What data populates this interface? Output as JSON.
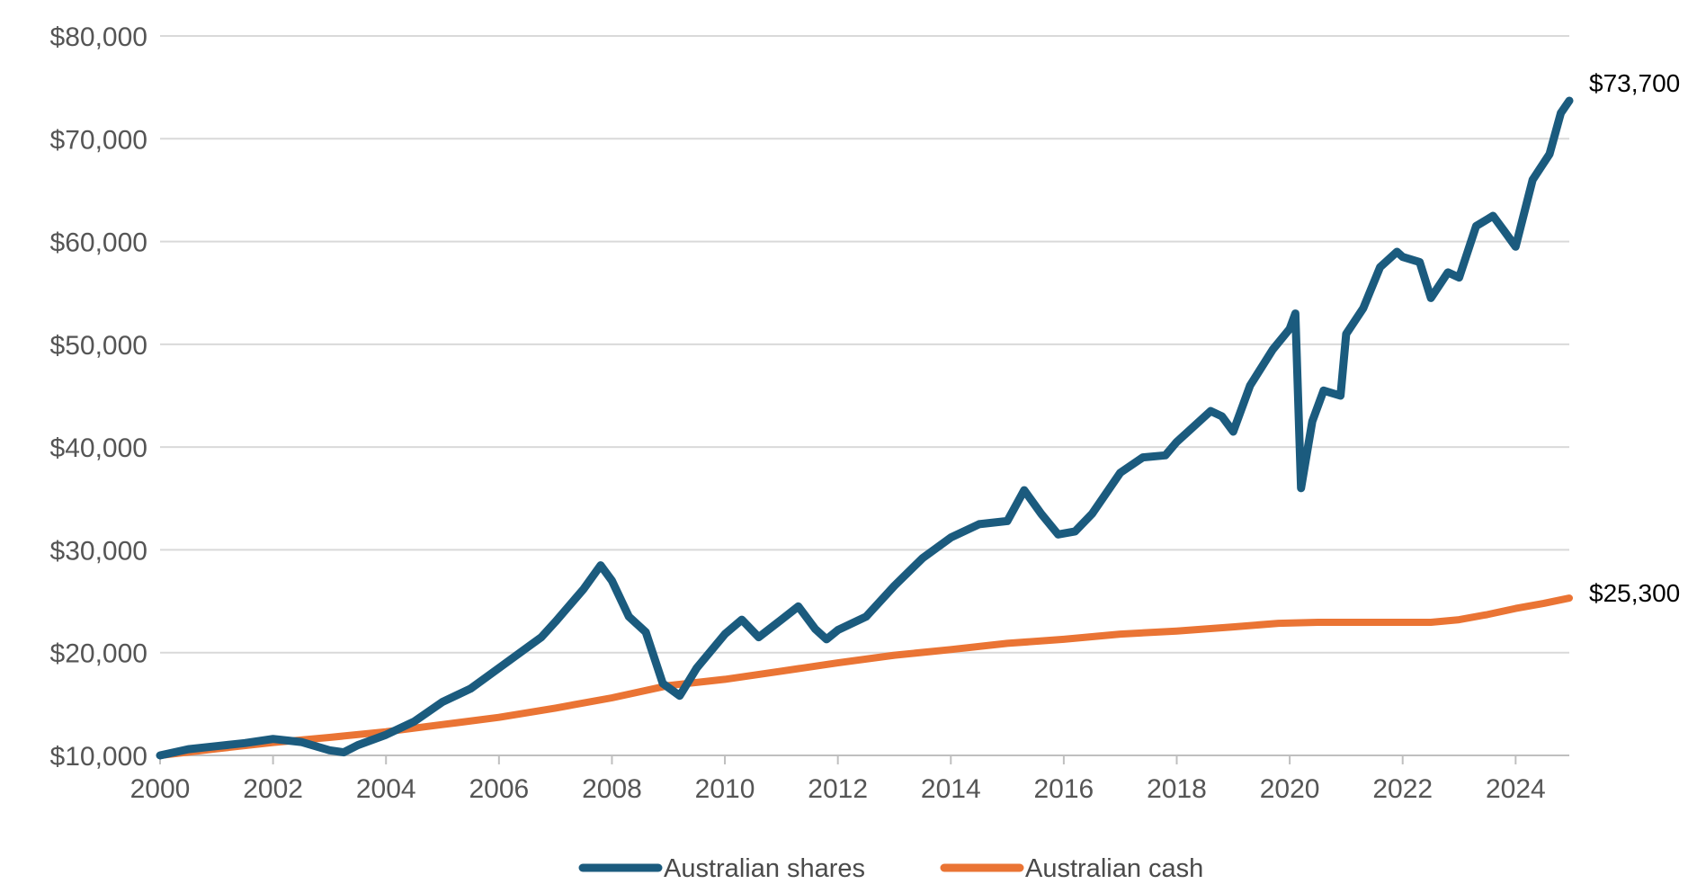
{
  "chart_data": {
    "type": "line",
    "title": "",
    "xlabel": "",
    "ylabel": "",
    "xlim": [
      2000,
      2024.95
    ],
    "ylim": [
      10000,
      80000
    ],
    "grid": "horizontal",
    "legend_position": "bottom-center",
    "x_ticks": [
      2000,
      2002,
      2004,
      2006,
      2008,
      2010,
      2012,
      2014,
      2016,
      2018,
      2020,
      2022,
      2024
    ],
    "x_tick_labels": [
      "2000",
      "2002",
      "2004",
      "2006",
      "2008",
      "2010",
      "2012",
      "2014",
      "2016",
      "2018",
      "2020",
      "2022",
      "2024"
    ],
    "y_ticks": [
      10000,
      20000,
      30000,
      40000,
      50000,
      60000,
      70000,
      80000
    ],
    "y_tick_labels": [
      "$10,000",
      "$20,000",
      "$30,000",
      "$40,000",
      "$50,000",
      "$60,000",
      "$70,000",
      "$80,000"
    ],
    "series": [
      {
        "name": "Australian shares",
        "color": "#1b5b7e",
        "end_label": "$73,700",
        "x": [
          2000,
          2000.5,
          2001,
          2001.5,
          2002,
          2002.5,
          2003,
          2003.25,
          2003.5,
          2004,
          2004.5,
          2005,
          2005.5,
          2006,
          2006.5,
          2006.75,
          2007,
          2007.5,
          2007.8,
          2008,
          2008.3,
          2008.6,
          2008.9,
          2009.2,
          2009.5,
          2010,
          2010.3,
          2010.6,
          2011,
          2011.3,
          2011.6,
          2011.8,
          2012,
          2012.5,
          2013,
          2013.5,
          2014,
          2014.5,
          2015,
          2015.3,
          2015.6,
          2015.9,
          2016.2,
          2016.5,
          2017,
          2017.4,
          2017.8,
          2018,
          2018.3,
          2018.6,
          2018.8,
          2019,
          2019.3,
          2019.7,
          2020,
          2020.1,
          2020.2,
          2020.4,
          2020.6,
          2020.9,
          2021,
          2021.3,
          2021.6,
          2021.9,
          2022,
          2022.3,
          2022.5,
          2022.8,
          2023,
          2023.3,
          2023.6,
          2023.8,
          2024,
          2024.3,
          2024.6,
          2024.8,
          2024.95
        ],
        "values": [
          10000,
          10600,
          10900,
          11200,
          11600,
          11300,
          10500,
          10300,
          11000,
          12000,
          13300,
          15200,
          16500,
          18500,
          20500,
          21500,
          23000,
          26200,
          28500,
          27000,
          23500,
          22000,
          17000,
          15800,
          18500,
          21800,
          23200,
          21500,
          23200,
          24500,
          22300,
          21300,
          22200,
          23500,
          26500,
          29200,
          31200,
          32500,
          32800,
          35800,
          33500,
          31500,
          31800,
          33500,
          37500,
          39000,
          39200,
          40500,
          42000,
          43500,
          43000,
          41500,
          46000,
          49500,
          51500,
          53000,
          36000,
          42500,
          45500,
          45000,
          51000,
          53500,
          57500,
          59000,
          58500,
          58000,
          54500,
          57000,
          56500,
          61500,
          62500,
          61000,
          59500,
          66000,
          68500,
          72500,
          73700
        ]
      },
      {
        "name": "Australian cash",
        "color": "#ea7434",
        "end_label": "$25,300",
        "x": [
          2000,
          2001,
          2002,
          2003,
          2004,
          2005,
          2006,
          2007,
          2008,
          2009,
          2010,
          2011,
          2012,
          2013,
          2014,
          2015,
          2016,
          2017,
          2018,
          2019,
          2019.8,
          2020.5,
          2021,
          2022,
          2022.5,
          2023,
          2023.5,
          2024,
          2024.5,
          2024.95
        ],
        "values": [
          10000,
          10650,
          11250,
          11750,
          12300,
          13000,
          13700,
          14600,
          15600,
          16800,
          17400,
          18200,
          19000,
          19750,
          20300,
          20900,
          21300,
          21800,
          22100,
          22500,
          22850,
          22950,
          22950,
          22950,
          22950,
          23200,
          23700,
          24300,
          24800,
          25300
        ]
      }
    ]
  }
}
